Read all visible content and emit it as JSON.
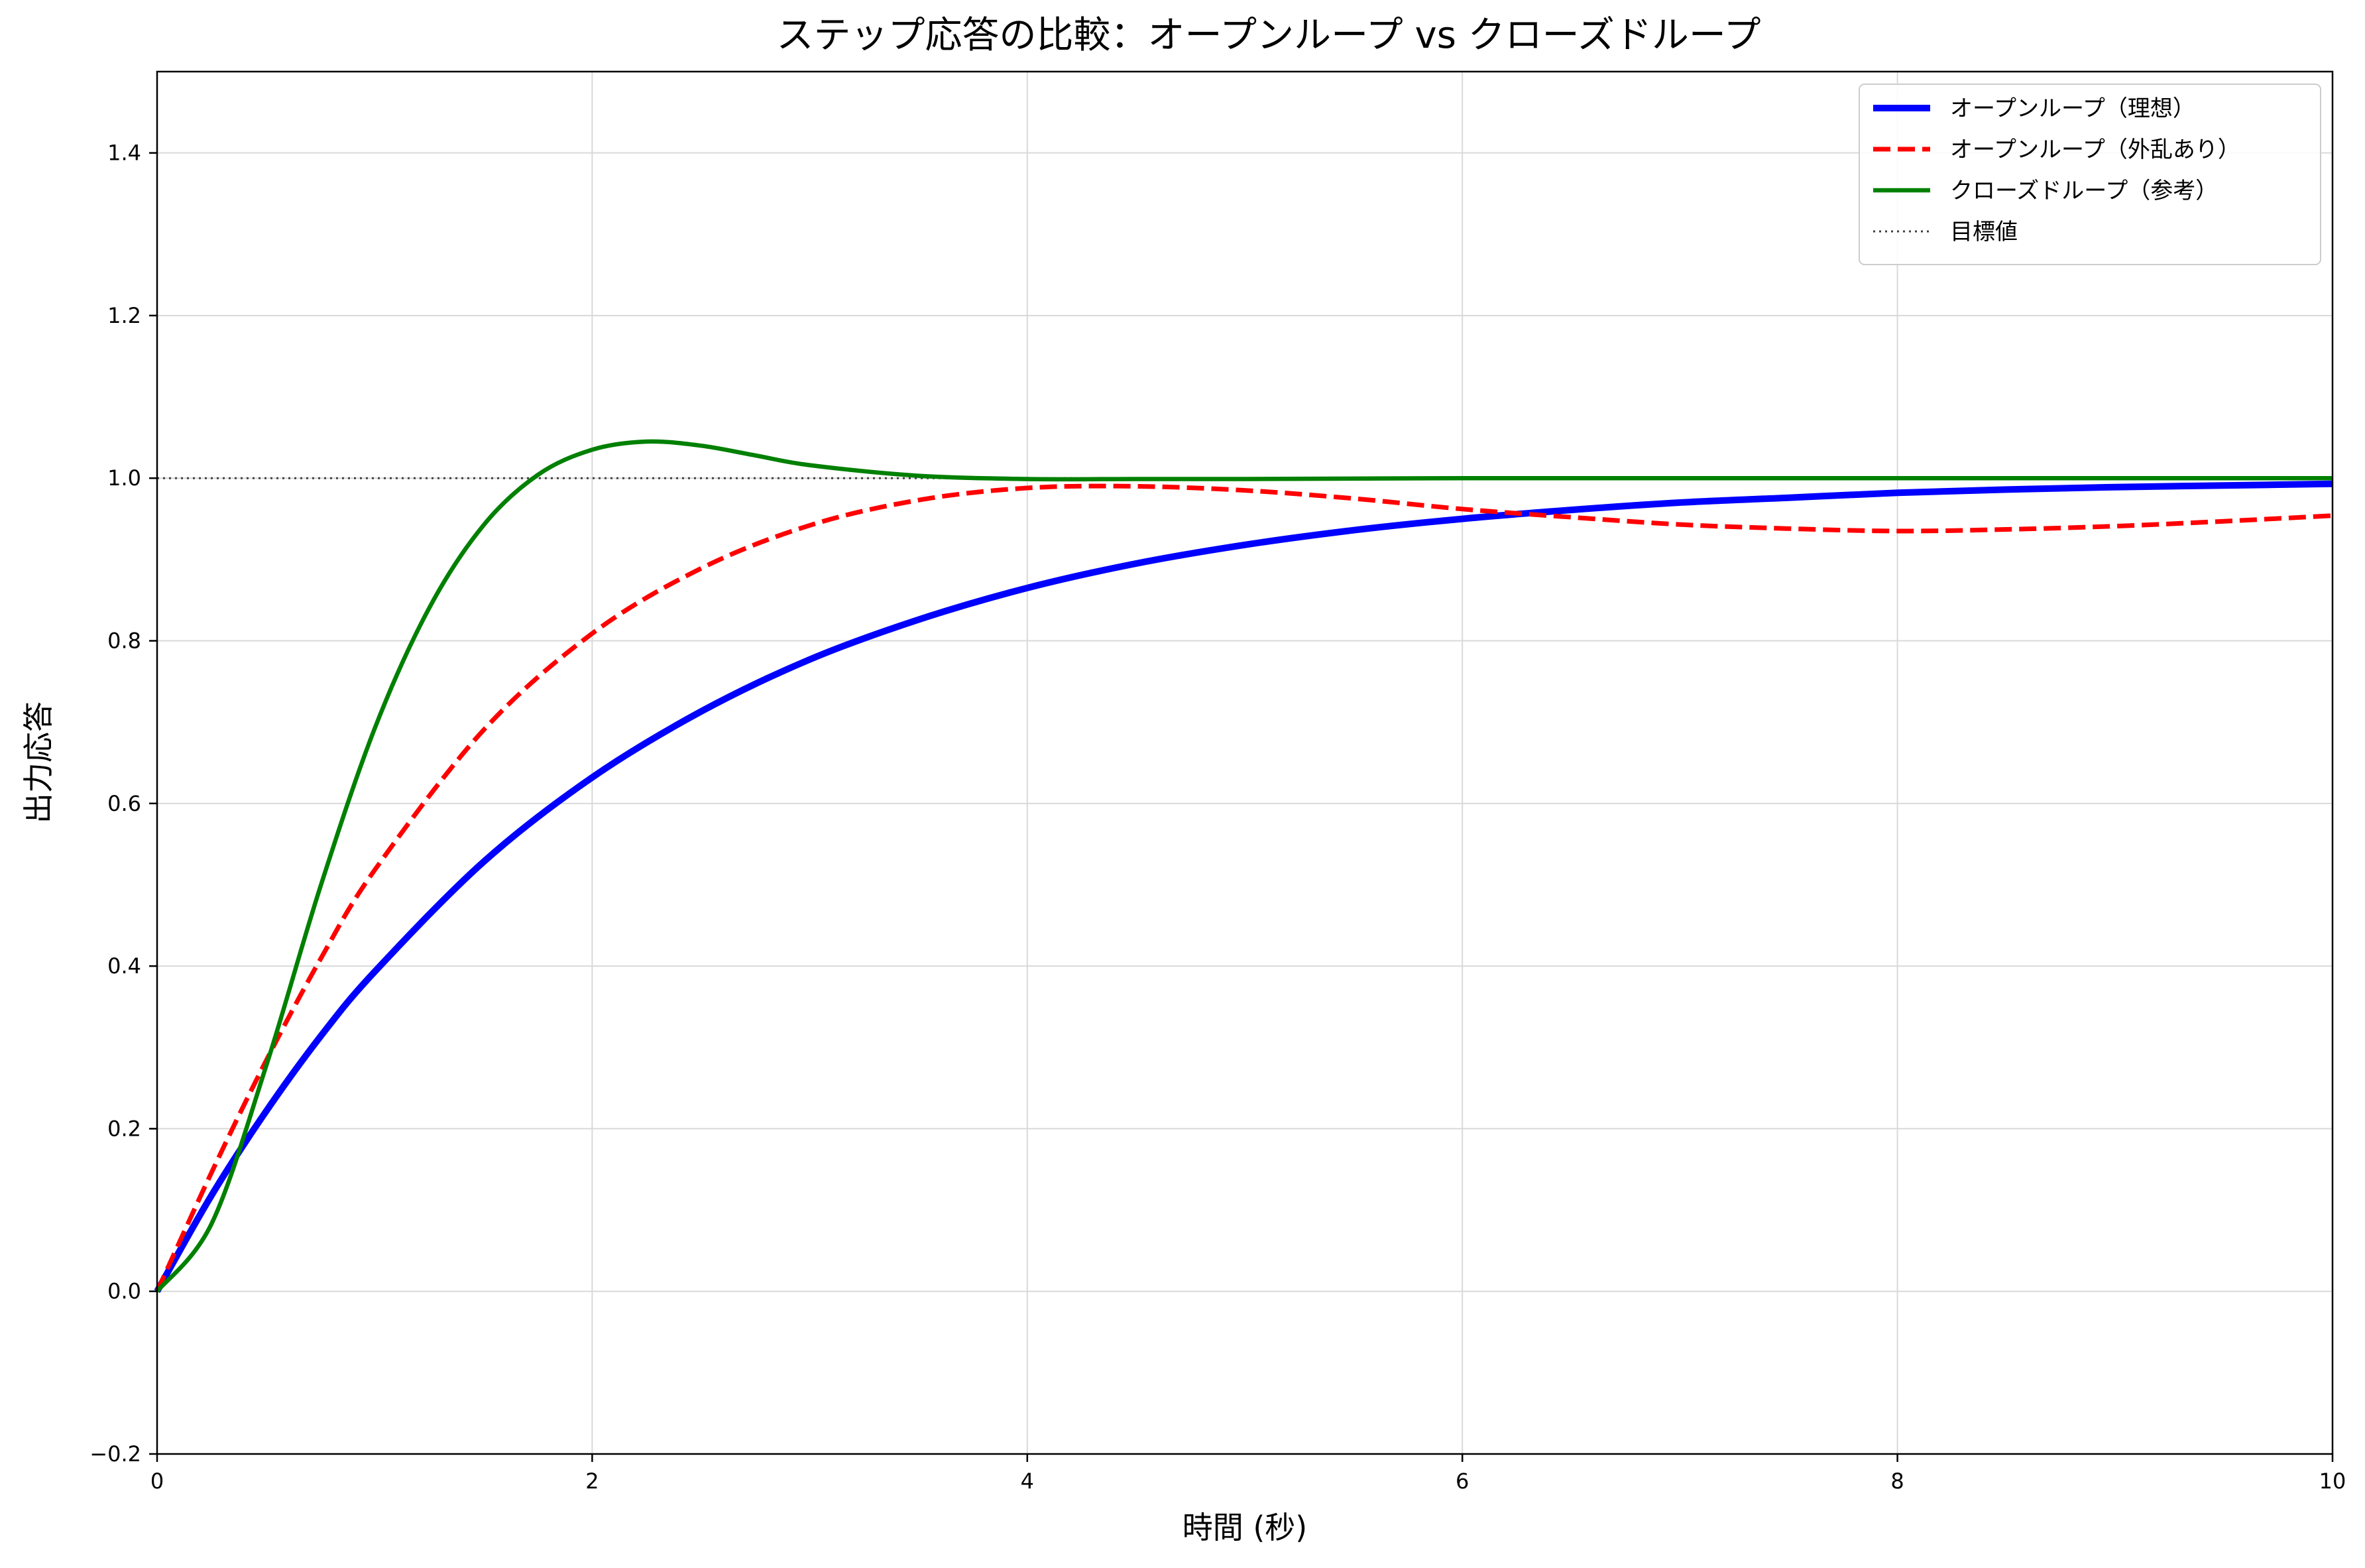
{
  "chart_data": {
    "type": "line",
    "title": "ステップ応答の比較：オープンループ vs クローズドループ",
    "xlabel": "時間 (秒)",
    "ylabel": "出力応答",
    "xlim": [
      0,
      10
    ],
    "ylim": [
      -0.2,
      1.5
    ],
    "x_ticks": [
      0,
      2,
      4,
      6,
      8,
      10
    ],
    "x_tick_labels": [
      "0",
      "2",
      "4",
      "6",
      "8",
      "10"
    ],
    "y_ticks": [
      -0.2,
      0.0,
      0.2,
      0.4,
      0.6,
      0.8,
      1.0,
      1.2,
      1.4
    ],
    "y_tick_labels": [
      "−0.2",
      "0.0",
      "0.2",
      "0.4",
      "0.6",
      "0.8",
      "1.0",
      "1.2",
      "1.4"
    ],
    "grid": true,
    "legend_position": "top-right",
    "series": [
      {
        "name": "オープンループ（理想）",
        "color": "#0000ff",
        "style": "solid",
        "x": [
          0,
          0.25,
          0.5,
          0.75,
          1.0,
          1.5,
          2.0,
          2.5,
          3.0,
          3.5,
          4.0,
          4.5,
          5.0,
          5.5,
          6.0,
          6.5,
          7.0,
          7.5,
          8.0,
          8.5,
          9.0,
          9.5,
          10.0
        ],
        "values": [
          0.0,
          0.118,
          0.221,
          0.313,
          0.393,
          0.528,
          0.632,
          0.713,
          0.777,
          0.826,
          0.865,
          0.895,
          0.918,
          0.936,
          0.95,
          0.961,
          0.97,
          0.976,
          0.982,
          0.986,
          0.989,
          0.991,
          0.993
        ]
      },
      {
        "name": "オープンループ（外乱あり）",
        "color": "#ff0000",
        "style": "dashed",
        "x": [
          0,
          0.25,
          0.5,
          0.75,
          1.0,
          1.5,
          2.0,
          2.5,
          3.0,
          3.5,
          4.0,
          4.5,
          5.0,
          5.5,
          6.0,
          6.5,
          7.0,
          7.5,
          8.0,
          8.5,
          9.0,
          9.5,
          10.0
        ],
        "values": [
          0.0,
          0.146,
          0.283,
          0.408,
          0.518,
          0.69,
          0.809,
          0.889,
          0.942,
          0.973,
          0.988,
          0.99,
          0.985,
          0.975,
          0.962,
          0.952,
          0.943,
          0.938,
          0.935,
          0.937,
          0.941,
          0.947,
          0.954
        ]
      },
      {
        "name": "クローズドループ（参考）",
        "color": "#008000",
        "style": "solid",
        "x": [
          0,
          0.25,
          0.5,
          0.75,
          1.0,
          1.25,
          1.5,
          1.75,
          2.0,
          2.25,
          2.5,
          2.75,
          3.0,
          3.5,
          4.0,
          4.5,
          5.0,
          6.0,
          7.0,
          8.0,
          9.0,
          10.0
        ],
        "values": [
          0.0,
          0.083,
          0.276,
          0.497,
          0.692,
          0.84,
          0.942,
          1.004,
          1.035,
          1.045,
          1.04,
          1.028,
          1.016,
          1.003,
          0.999,
          0.999,
          0.999,
          1.0,
          1.0,
          1.0,
          1.0,
          1.0
        ]
      },
      {
        "name": "目標値",
        "color": "#404040",
        "style": "dotted",
        "x": [
          0,
          10
        ],
        "values": [
          1.0,
          1.0
        ]
      }
    ]
  }
}
